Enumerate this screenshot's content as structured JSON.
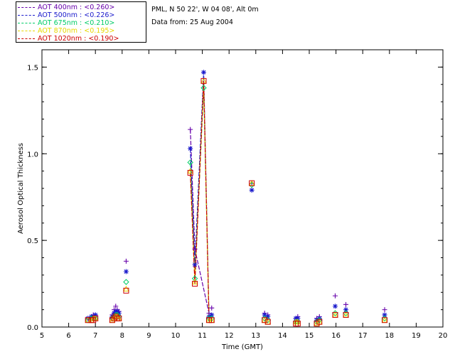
{
  "info": {
    "site": "PML, N 50 22', W 04 08', Alt 0m",
    "date": "Data from: 25 Aug 2004"
  },
  "chart_data": {
    "type": "scatter",
    "xlabel": "Time (GMT)",
    "ylabel": "Aerosol Optical Thickness",
    "xlim": [
      5,
      20
    ],
    "ylim": [
      0,
      1.6
    ],
    "xticks": [
      "5",
      "6",
      "7",
      "8",
      "9",
      "10",
      "11",
      "12",
      "13",
      "14",
      "15",
      "16",
      "17",
      "18",
      "19",
      "20"
    ],
    "yticks": [
      "0.0",
      "0.5",
      "1.0",
      "1.5"
    ],
    "legend_position": "top-left, outside plot",
    "series": [
      {
        "name": "AOT  400nm : <0.260>",
        "color": "#6600aa",
        "marker": "plus",
        "x": [
          6.72,
          6.85,
          6.92,
          7.0,
          7.63,
          7.7,
          7.76,
          7.82,
          7.88,
          8.15,
          10.55,
          10.72,
          11.25,
          11.35,
          12.85,
          13.33,
          13.45,
          14.5,
          14.57,
          15.28,
          15.38,
          15.97,
          16.37,
          17.82
        ],
        "y": [
          0.05,
          0.06,
          0.07,
          0.07,
          0.07,
          0.1,
          0.12,
          0.1,
          0.09,
          0.38,
          1.14,
          0.45,
          0.08,
          0.11,
          0.83,
          0.08,
          0.07,
          0.05,
          0.06,
          0.05,
          0.06,
          0.18,
          0.13,
          0.1
        ]
      },
      {
        "name": "AOT  500nm : <0.226>",
        "color": "#1a1acc",
        "marker": "asterisk",
        "x": [
          6.72,
          6.85,
          6.92,
          7.0,
          7.63,
          7.7,
          7.76,
          7.82,
          7.88,
          8.15,
          10.55,
          10.72,
          11.05,
          11.25,
          11.35,
          12.85,
          13.33,
          13.45,
          14.5,
          14.57,
          15.28,
          15.38,
          15.97,
          16.37,
          17.82
        ],
        "y": [
          0.05,
          0.06,
          0.06,
          0.07,
          0.06,
          0.08,
          0.09,
          0.09,
          0.08,
          0.32,
          1.03,
          0.36,
          1.47,
          0.06,
          0.07,
          0.79,
          0.07,
          0.06,
          0.05,
          0.05,
          0.04,
          0.05,
          0.12,
          0.1,
          0.07
        ]
      },
      {
        "name": "AOT  675nm : <0.210>",
        "color": "#00cc66",
        "marker": "diamond",
        "x": [
          6.72,
          6.85,
          6.92,
          7.0,
          7.63,
          7.7,
          7.76,
          7.82,
          7.88,
          8.15,
          10.55,
          10.72,
          11.05,
          11.25,
          11.35,
          12.85,
          13.33,
          13.45,
          14.5,
          14.57,
          15.28,
          15.38,
          15.97,
          16.37,
          17.82
        ],
        "y": [
          0.04,
          0.05,
          0.05,
          0.05,
          0.05,
          0.06,
          0.07,
          0.07,
          0.06,
          0.26,
          0.95,
          0.28,
          1.38,
          0.05,
          0.05,
          0.82,
          0.05,
          0.04,
          0.03,
          0.03,
          0.03,
          0.04,
          0.08,
          0.08,
          0.05
        ]
      },
      {
        "name": "AOT  870nm : <0.195>",
        "color": "#e8d800",
        "marker": "triangle",
        "x": [
          6.72,
          6.85,
          6.92,
          7.0,
          7.63,
          7.7,
          7.76,
          7.82,
          7.88,
          8.15,
          10.55,
          10.72,
          11.05,
          11.25,
          11.35,
          12.85,
          13.33,
          13.45,
          14.5,
          14.57,
          15.28,
          15.38,
          15.97,
          16.37,
          17.82
        ],
        "y": [
          0.04,
          0.04,
          0.05,
          0.05,
          0.04,
          0.05,
          0.06,
          0.06,
          0.05,
          0.22,
          0.9,
          0.26,
          1.42,
          0.04,
          0.04,
          0.83,
          0.04,
          0.03,
          0.03,
          0.03,
          0.02,
          0.03,
          0.07,
          0.07,
          0.04
        ]
      },
      {
        "name": "AOT 1020nm : <0.190>",
        "color": "#cc0000",
        "marker": "square",
        "x": [
          6.72,
          6.85,
          6.92,
          7.0,
          7.63,
          7.7,
          7.76,
          7.82,
          7.88,
          8.15,
          10.55,
          10.72,
          11.05,
          11.25,
          11.35,
          12.85,
          13.33,
          13.45,
          14.5,
          14.57,
          15.28,
          15.38,
          15.97,
          16.37,
          17.82
        ],
        "y": [
          0.04,
          0.04,
          0.04,
          0.05,
          0.04,
          0.05,
          0.06,
          0.05,
          0.05,
          0.21,
          0.89,
          0.25,
          1.42,
          0.04,
          0.04,
          0.83,
          0.04,
          0.03,
          0.02,
          0.02,
          0.02,
          0.03,
          0.07,
          0.07,
          0.04
        ]
      }
    ]
  }
}
